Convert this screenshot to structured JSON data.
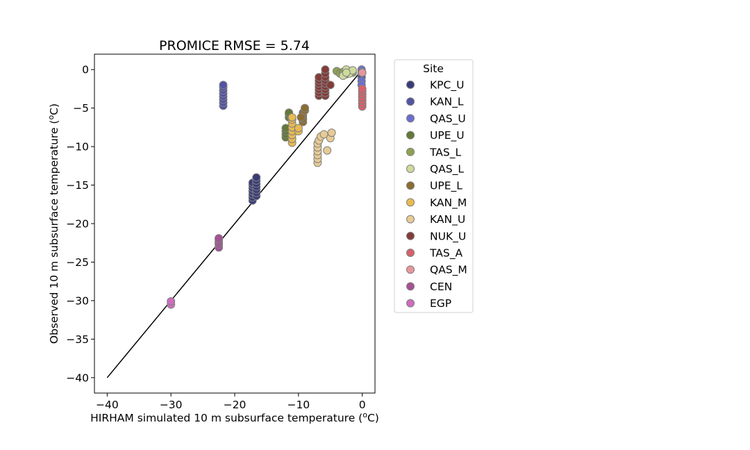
{
  "chart_data": {
    "type": "scatter",
    "title": "PROMICE RMSE = 5.74",
    "xlabel": "HIRHAM simulated 10 m subsurface temperature (°C)",
    "ylabel": "Observed 10 m subsurface temperature (°C)",
    "xlabel_prefix": "HIRHAM simulated 10 m subsurface temperature (",
    "xlabel_sup": "o",
    "xlabel_suffix": "C)",
    "ylabel_prefix": "Observed 10 m subsurface temperature (",
    "ylabel_sup": "o",
    "ylabel_suffix": "C)",
    "xlim": [
      -42,
      2
    ],
    "ylim": [
      -42,
      2
    ],
    "xticks": [
      -40,
      -30,
      -20,
      -10,
      0
    ],
    "yticks": [
      0,
      -5,
      -10,
      -15,
      -20,
      -25,
      -30,
      -35,
      -40
    ],
    "xtick_labels": [
      "−40",
      "−30",
      "−20",
      "−10",
      "0"
    ],
    "ytick_labels": [
      "0",
      "−5",
      "−10",
      "−15",
      "−20",
      "−25",
      "−30",
      "−35",
      "−40"
    ],
    "grid": false,
    "legend": {
      "title": "Site",
      "position": "outside-right"
    },
    "reference_line": {
      "from": [
        -40,
        -40
      ],
      "to": [
        0,
        0
      ],
      "color": "#000000"
    },
    "series": [
      {
        "name": "KPC_U",
        "color": "#393b79",
        "points": [
          [
            -17.2,
            -17.0
          ],
          [
            -17.2,
            -16.6
          ],
          [
            -17.2,
            -16.2
          ],
          [
            -17.2,
            -15.8
          ],
          [
            -17.2,
            -15.4
          ],
          [
            -17.2,
            -15.0
          ],
          [
            -17.2,
            -14.7
          ],
          [
            -16.6,
            -16.4
          ],
          [
            -16.6,
            -16.0
          ],
          [
            -16.6,
            -15.6
          ],
          [
            -16.6,
            -15.2
          ],
          [
            -16.6,
            -14.8
          ],
          [
            -16.6,
            -14.4
          ],
          [
            -16.6,
            -14.0
          ]
        ]
      },
      {
        "name": "KAN_L",
        "color": "#5254a3",
        "points": [
          [
            -21.8,
            -4.7
          ],
          [
            -21.8,
            -4.3
          ],
          [
            -21.8,
            -3.9
          ],
          [
            -21.8,
            -3.5
          ],
          [
            -21.8,
            -3.1
          ],
          [
            -21.8,
            -2.7
          ],
          [
            -21.8,
            -2.3
          ],
          [
            -21.8,
            -2.0
          ],
          [
            -0.1,
            -0.5
          ],
          [
            -0.1,
            -1.0
          ]
        ]
      },
      {
        "name": "QAS_U",
        "color": "#6b6ecf",
        "points": [
          [
            -0.1,
            0.0
          ],
          [
            -0.1,
            -0.3
          ],
          [
            -0.1,
            -1.5
          ],
          [
            -0.1,
            -2.0
          ]
        ]
      },
      {
        "name": "UPE_U",
        "color": "#637939",
        "points": [
          [
            -12.0,
            -8.8
          ],
          [
            -12.0,
            -8.4
          ],
          [
            -12.0,
            -8.0
          ],
          [
            -12.0,
            -7.6
          ],
          [
            -11.5,
            -6.2
          ],
          [
            -11.5,
            -5.8
          ],
          [
            -11.5,
            -5.6
          ]
        ]
      },
      {
        "name": "TAS_L",
        "color": "#8ca252",
        "points": [
          [
            -4.0,
            -0.2
          ],
          [
            -3.5,
            -0.5
          ],
          [
            -3.0,
            -0.3
          ],
          [
            -2.5,
            -0.6
          ],
          [
            -2.0,
            -0.2
          ],
          [
            -1.5,
            -0.4
          ]
        ]
      },
      {
        "name": "QAS_L",
        "color": "#cedb9c",
        "points": [
          [
            -3.0,
            -0.8
          ],
          [
            -2.5,
            0.0
          ],
          [
            -2.0,
            -0.5
          ],
          [
            -1.5,
            -0.1
          ],
          [
            -2.5,
            -0.4
          ]
        ]
      },
      {
        "name": "UPE_L",
        "color": "#8c6d31",
        "points": [
          [
            -9.3,
            -6.8
          ],
          [
            -9.3,
            -6.4
          ],
          [
            -9.3,
            -6.0
          ],
          [
            -9.3,
            -5.6
          ],
          [
            -9.0,
            -5.3
          ],
          [
            -9.0,
            -5.0
          ],
          [
            -9.6,
            -6.2
          ]
        ]
      },
      {
        "name": "KAN_M",
        "color": "#e7ba52",
        "points": [
          [
            -11.0,
            -9.5
          ],
          [
            -11.0,
            -9.0
          ],
          [
            -11.0,
            -8.5
          ],
          [
            -11.0,
            -8.0
          ],
          [
            -11.0,
            -7.5
          ],
          [
            -11.0,
            -7.0
          ],
          [
            -11.0,
            -6.5
          ],
          [
            -11.0,
            -6.2
          ],
          [
            -10.0,
            -8.0
          ],
          [
            -10.0,
            -7.6
          ]
        ]
      },
      {
        "name": "KAN_U",
        "color": "#e7cb94",
        "points": [
          [
            -7.0,
            -12.1
          ],
          [
            -7.0,
            -11.6
          ],
          [
            -7.0,
            -11.1
          ],
          [
            -7.0,
            -10.6
          ],
          [
            -7.0,
            -10.1
          ],
          [
            -7.0,
            -9.6
          ],
          [
            -6.8,
            -9.2
          ],
          [
            -6.5,
            -8.7
          ],
          [
            -6.0,
            -8.4
          ],
          [
            -5.5,
            -10.5
          ],
          [
            -5.0,
            -8.9
          ],
          [
            -4.8,
            -8.2
          ]
        ]
      },
      {
        "name": "NUK_U",
        "color": "#843c39",
        "points": [
          [
            -6.8,
            -3.4
          ],
          [
            -6.8,
            -3.0
          ],
          [
            -6.8,
            -2.6
          ],
          [
            -6.8,
            -2.2
          ],
          [
            -6.8,
            -1.8
          ],
          [
            -6.8,
            -1.4
          ],
          [
            -6.8,
            -1.0
          ],
          [
            -5.8,
            -3.4
          ],
          [
            -5.8,
            -3.0
          ],
          [
            -5.8,
            -2.6
          ],
          [
            -5.8,
            -2.2
          ],
          [
            -5.8,
            -1.8
          ],
          [
            -5.8,
            -1.4
          ],
          [
            -5.8,
            -1.0
          ],
          [
            -5.8,
            -0.5
          ],
          [
            -5.8,
            0.0
          ],
          [
            -5.0,
            -2.0
          ]
        ]
      },
      {
        "name": "TAS_A",
        "color": "#d6616b",
        "points": [
          [
            0.0,
            -4.8
          ],
          [
            0.0,
            -4.4
          ],
          [
            0.0,
            -4.0
          ],
          [
            0.0,
            -3.6
          ],
          [
            0.0,
            -3.2
          ],
          [
            0.0,
            -2.8
          ],
          [
            0.0,
            -2.5
          ]
        ]
      },
      {
        "name": "QAS_M",
        "color": "#e7969c",
        "points": [
          [
            0.0,
            -0.4
          ]
        ]
      },
      {
        "name": "CEN",
        "color": "#a55194",
        "points": [
          [
            -22.5,
            -23.1
          ],
          [
            -22.5,
            -22.7
          ],
          [
            -22.5,
            -22.4
          ],
          [
            -22.5,
            -22.1
          ],
          [
            -22.5,
            -21.9
          ]
        ]
      },
      {
        "name": "EGP",
        "color": "#ce6dbd",
        "points": [
          [
            -30.0,
            -30.5
          ],
          [
            -30.0,
            -30.1
          ]
        ]
      }
    ]
  }
}
